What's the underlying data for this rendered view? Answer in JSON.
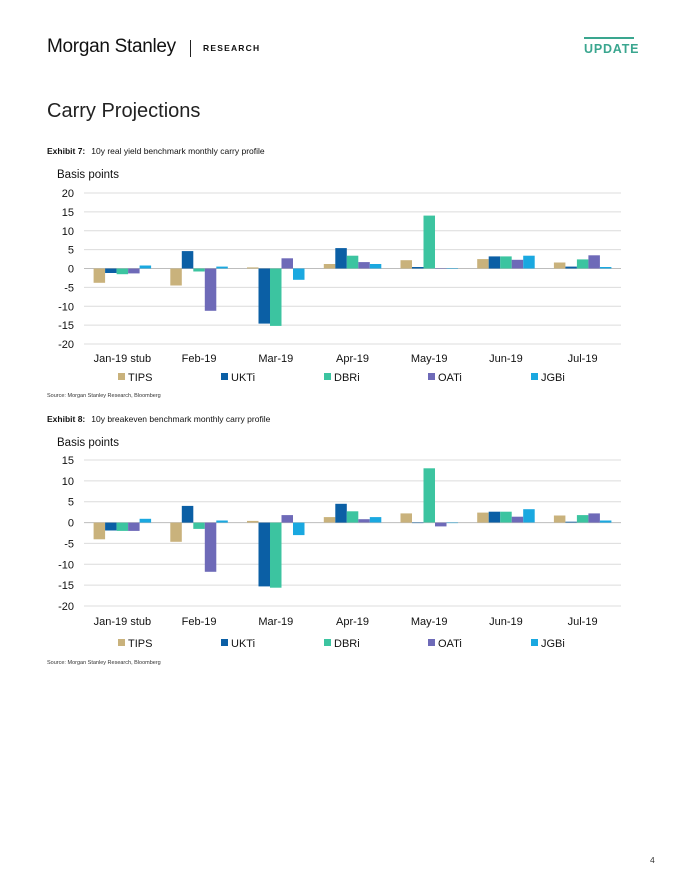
{
  "header": {
    "logo": "Morgan Stanley",
    "research": "RESEARCH",
    "update": "UPDATE"
  },
  "section_title": "Carry Projections",
  "page_number": "4",
  "colors": {
    "TIPS": "#c9b27c",
    "UKTi": "#0b5fa5",
    "DBRi": "#3cc4a0",
    "OATi": "#6e6ab8",
    "JGBi": "#1aa8e0",
    "accent": "#3aa68f"
  },
  "exhibits": [
    {
      "label": "Exhibit 7:",
      "title": "10y real yield benchmark monthly carry profile",
      "source": "Source: Morgan Stanley Research, Bloomberg"
    },
    {
      "label": "Exhibit 8:",
      "title": "10y breakeven benchmark monthly carry profile",
      "source": "Source: Morgan Stanley Research, Bloomberg"
    }
  ],
  "chart_data": [
    {
      "type": "bar",
      "ylabel": "Basis points",
      "ylim": [
        -20,
        20
      ],
      "yticks": [
        20,
        15,
        10,
        5,
        0,
        -5,
        -10,
        -15,
        -20
      ],
      "grid": true,
      "legend": "bottom",
      "categories": [
        "Jan-19 stub",
        "Feb-19",
        "Mar-19",
        "Apr-19",
        "May-19",
        "Jun-19",
        "Jul-19"
      ],
      "series": [
        {
          "name": "TIPS",
          "values": [
            -3.8,
            -4.5,
            0.3,
            1.2,
            2.2,
            2.5,
            1.6
          ]
        },
        {
          "name": "UKTi",
          "values": [
            -1.2,
            4.6,
            -14.6,
            5.4,
            0.4,
            3.2,
            0.5
          ]
        },
        {
          "name": "DBRi",
          "values": [
            -1.5,
            -0.8,
            -15.2,
            3.4,
            14.0,
            3.2,
            2.4
          ]
        },
        {
          "name": "OATi",
          "values": [
            -1.3,
            -11.2,
            2.7,
            1.7,
            0.0,
            2.3,
            3.5
          ]
        },
        {
          "name": "JGBi",
          "values": [
            0.8,
            0.5,
            -3.0,
            1.2,
            0.0,
            3.4,
            0.4
          ]
        }
      ]
    },
    {
      "type": "bar",
      "ylabel": "Basis points",
      "ylim": [
        -20,
        15
      ],
      "yticks": [
        15,
        10,
        5,
        0,
        -5,
        -10,
        -15,
        -20
      ],
      "grid": true,
      "legend": "bottom",
      "categories": [
        "Jan-19 stub",
        "Feb-19",
        "Mar-19",
        "Apr-19",
        "May-19",
        "Jun-19",
        "Jul-19"
      ],
      "series": [
        {
          "name": "TIPS",
          "values": [
            -4.0,
            -4.6,
            0.4,
            1.3,
            2.2,
            2.4,
            1.7
          ]
        },
        {
          "name": "UKTi",
          "values": [
            -1.9,
            4.0,
            -15.3,
            4.5,
            0.0,
            2.6,
            0.2
          ]
        },
        {
          "name": "DBRi",
          "values": [
            -2.0,
            -1.5,
            -15.6,
            2.7,
            13.0,
            2.6,
            1.8
          ]
        },
        {
          "name": "OATi",
          "values": [
            -2.0,
            -11.8,
            1.8,
            0.8,
            -0.9,
            1.4,
            2.2
          ]
        },
        {
          "name": "JGBi",
          "values": [
            0.9,
            0.5,
            -3.0,
            1.3,
            0.0,
            3.2,
            0.5
          ]
        }
      ]
    }
  ]
}
